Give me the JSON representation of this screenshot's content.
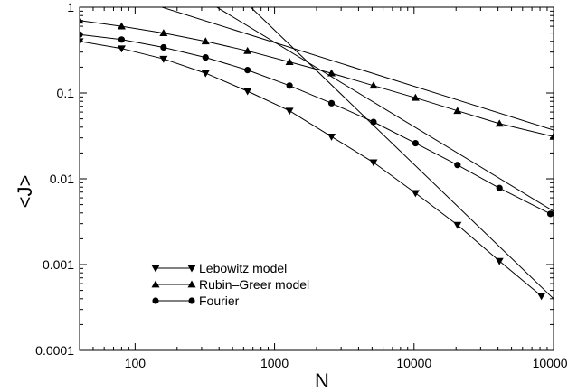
{
  "chart_data": {
    "type": "line",
    "xlabel": "N",
    "ylabel": "<J>",
    "xscale": "log",
    "yscale": "log",
    "xlim": [
      40,
      100000
    ],
    "ylim": [
      0.0001,
      1
    ],
    "grid": false,
    "legend_position": "bottom-left",
    "x_tick_labels": [
      "100",
      "1000",
      "10000",
      "100000"
    ],
    "y_tick_labels": [
      "0.0001",
      "0.001",
      "0.01",
      "0.1",
      "1"
    ],
    "x_tick_values": [
      100,
      1000,
      10000,
      100000
    ],
    "y_tick_values": [
      0.0001,
      0.001,
      0.01,
      0.1,
      1
    ],
    "series": [
      {
        "name": "Lebowitz model",
        "marker": "triangle-down",
        "x": [
          40,
          80,
          160,
          320,
          640,
          1280,
          2560,
          5120,
          10240,
          20480,
          40960,
          81920
        ],
        "y": [
          0.4,
          0.33,
          0.25,
          0.17,
          0.105,
          0.062,
          0.031,
          0.0155,
          0.0068,
          0.0029,
          0.0011,
          0.00043
        ]
      },
      {
        "name": "Rubin–Greer model",
        "marker": "triangle-up",
        "x": [
          40,
          80,
          160,
          320,
          640,
          1280,
          2560,
          5120,
          10240,
          20480,
          40960,
          100000
        ],
        "y": [
          0.7,
          0.6,
          0.5,
          0.4,
          0.31,
          0.23,
          0.17,
          0.122,
          0.088,
          0.062,
          0.044,
          0.031
        ]
      },
      {
        "name": "Fourier",
        "marker": "circle",
        "x": [
          40,
          80,
          160,
          320,
          640,
          1280,
          2560,
          5120,
          10240,
          20480,
          40960,
          95000
        ],
        "y": [
          0.48,
          0.42,
          0.34,
          0.26,
          0.185,
          0.122,
          0.076,
          0.046,
          0.026,
          0.0145,
          0.0078,
          0.0039
        ]
      }
    ],
    "asymptotes": [
      {
        "x": [
          40,
          100000
        ],
        "y": [
          2.0,
          0.037
        ]
      },
      {
        "x": [
          300,
          100000
        ],
        "y": [
          1.28,
          0.0042
        ]
      },
      {
        "x": [
          500,
          100000
        ],
        "y": [
          1.6,
          0.0004
        ]
      }
    ]
  }
}
